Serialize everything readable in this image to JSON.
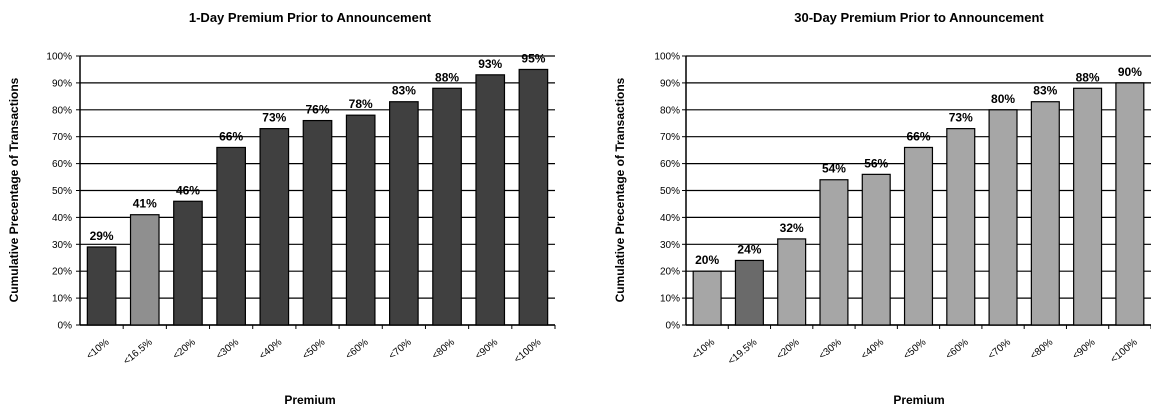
{
  "chart_data": [
    {
      "type": "bar",
      "title": "1-Day Premium Prior to Announcement",
      "xlabel": "Premium",
      "ylabel": "Cumulative Precentage of Transactions",
      "ylim": [
        0,
        100
      ],
      "yticks": [
        "0%",
        "10%",
        "20%",
        "30%",
        "40%",
        "50%",
        "60%",
        "70%",
        "80%",
        "90%",
        "100%"
      ],
      "categories": [
        "<10%",
        "<16.5%",
        "<20%",
        "<30%",
        "<40%",
        "<50%",
        "<60%",
        "<70%",
        "<80%",
        "<90%",
        "<100%"
      ],
      "values": [
        29,
        41,
        46,
        66,
        73,
        76,
        78,
        83,
        88,
        93,
        95
      ],
      "data_labels": [
        "29%",
        "41%",
        "46%",
        "66%",
        "73%",
        "76%",
        "78%",
        "83%",
        "88%",
        "93%",
        "95%"
      ],
      "bar_colors": [
        "#404040",
        "#8f8f8f",
        "#404040",
        "#404040",
        "#404040",
        "#404040",
        "#404040",
        "#404040",
        "#404040",
        "#404040",
        "#404040"
      ],
      "grid": true
    },
    {
      "type": "bar",
      "title": "30-Day Premium Prior to Announcement",
      "xlabel": "Premium",
      "ylabel": "Cumulative Precentage of Transactions",
      "ylim": [
        0,
        100
      ],
      "yticks": [
        "0%",
        "10%",
        "20%",
        "30%",
        "40%",
        "50%",
        "60%",
        "70%",
        "80%",
        "90%",
        "100%"
      ],
      "categories": [
        "<10%",
        "<19.5%",
        "<20%",
        "<30%",
        "<40%",
        "<50%",
        "<60%",
        "<70%",
        "<80%",
        "<90%",
        "<100%"
      ],
      "values": [
        20,
        24,
        32,
        54,
        56,
        66,
        73,
        80,
        83,
        88,
        90
      ],
      "data_labels": [
        "20%",
        "24%",
        "32%",
        "54%",
        "56%",
        "66%",
        "73%",
        "80%",
        "83%",
        "88%",
        "90%"
      ],
      "bar_colors": [
        "#a6a6a6",
        "#6a6a6a",
        "#a6a6a6",
        "#a6a6a6",
        "#a6a6a6",
        "#a6a6a6",
        "#a6a6a6",
        "#a6a6a6",
        "#a6a6a6",
        "#a6a6a6",
        "#a6a6a6"
      ],
      "grid": true
    }
  ]
}
